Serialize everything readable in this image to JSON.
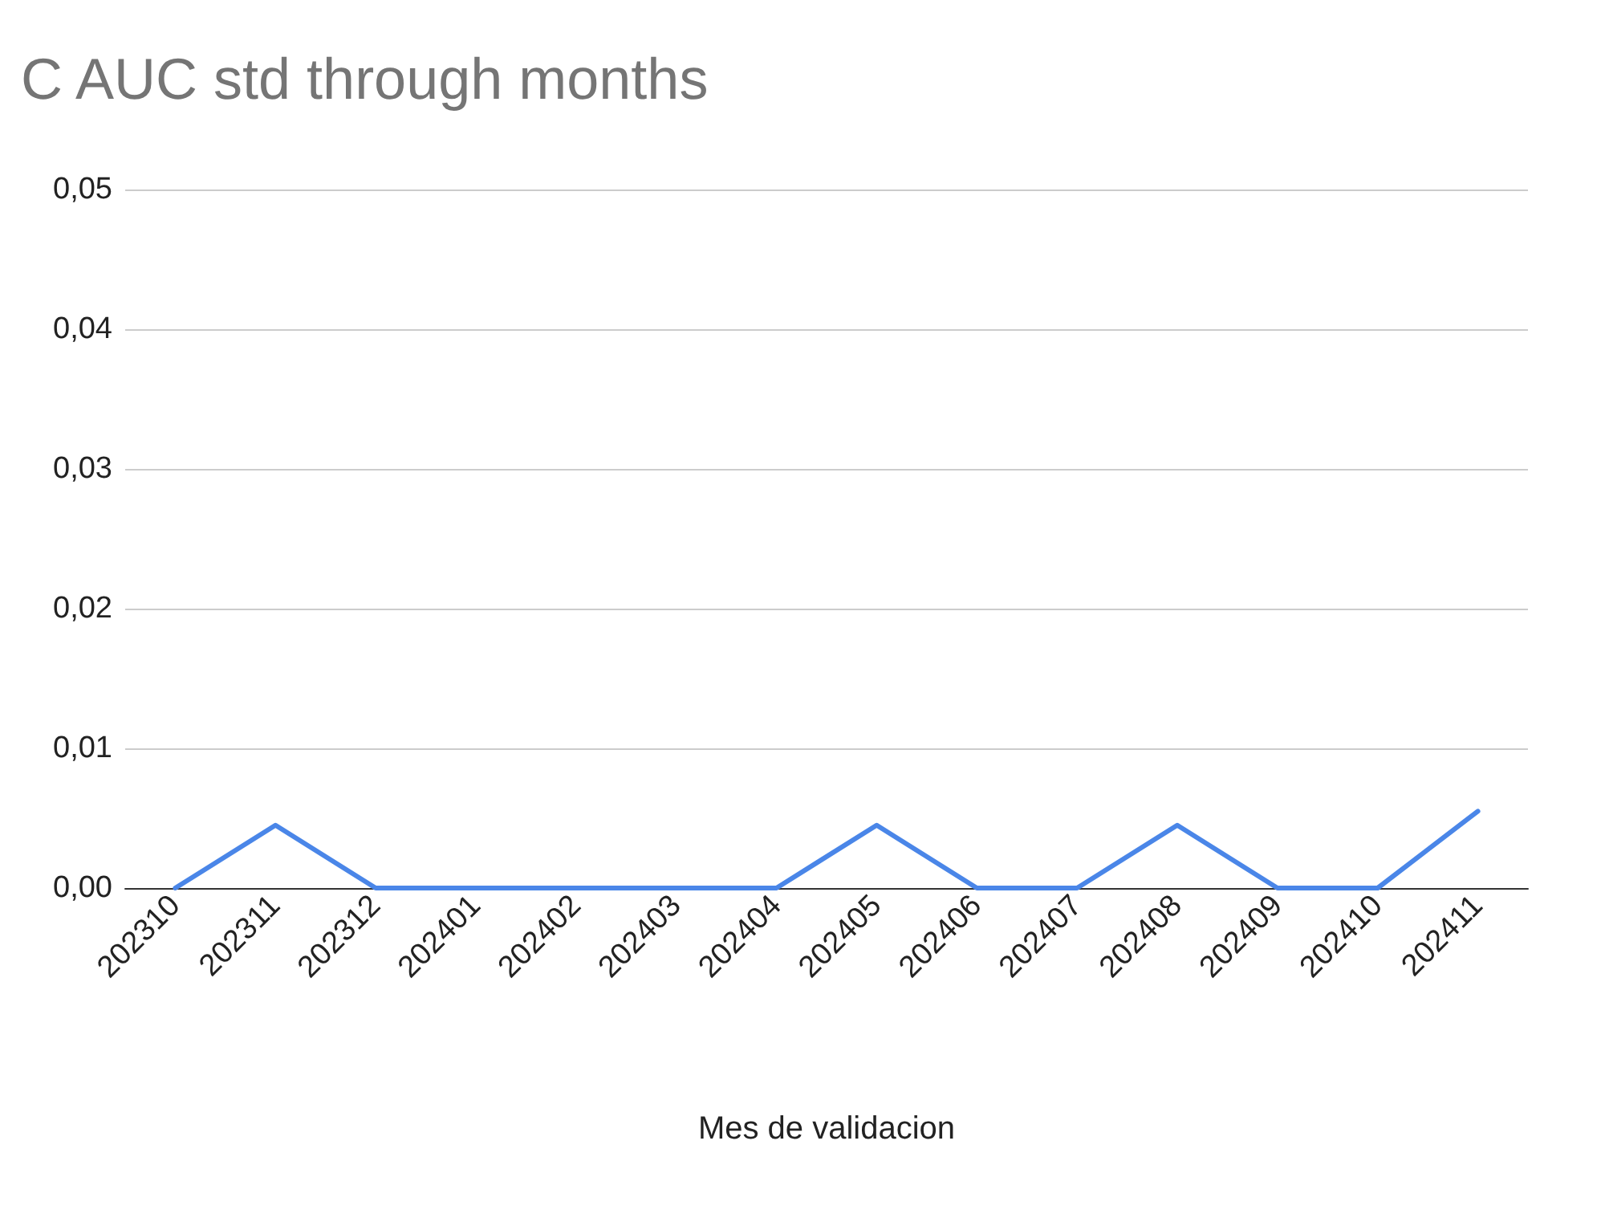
{
  "chart_data": {
    "type": "line",
    "title": "C AUC std through months",
    "xlabel": "Mes de validacion",
    "categories": [
      "202310",
      "202311",
      "202312",
      "202401",
      "202402",
      "202403",
      "202404",
      "202405",
      "202406",
      "202407",
      "202408",
      "202409",
      "202410",
      "202411"
    ],
    "series": [
      {
        "color": "#4a86e8",
        "values": [
          0,
          0.0045,
          0,
          0,
          0,
          0,
          0,
          0.0045,
          0,
          0,
          0.0045,
          0,
          0,
          0.0055
        ]
      }
    ],
    "ylim": [
      0,
      0.05
    ],
    "yticks": [
      {
        "value": 0,
        "label": "0,00"
      },
      {
        "value": 0.01,
        "label": "0,01"
      },
      {
        "value": 0.02,
        "label": "0,02"
      },
      {
        "value": 0.03,
        "label": "0,03"
      },
      {
        "value": 0.04,
        "label": "0,04"
      },
      {
        "value": 0.05,
        "label": "0,05"
      }
    ],
    "grid": "y",
    "marker": "none",
    "line_style": "solid"
  }
}
